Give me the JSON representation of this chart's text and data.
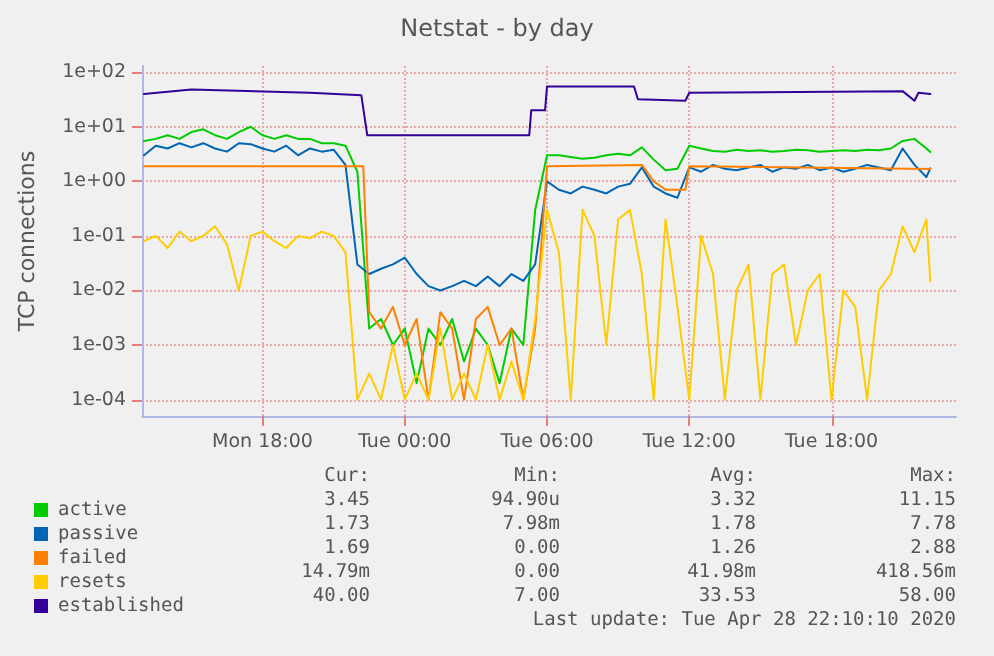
{
  "chart_data": {
    "type": "line",
    "title": "Netstat - by day",
    "ylabel": "TCP connections",
    "x": [
      "2020-04-27T13:00",
      "2020-04-27T13:30",
      "2020-04-27T14:00",
      "2020-04-27T14:30",
      "2020-04-27T15:00",
      "2020-04-27T15:30",
      "2020-04-27T16:00",
      "2020-04-27T16:30",
      "2020-04-27T17:00",
      "2020-04-27T17:30",
      "2020-04-27T18:00",
      "2020-04-27T18:30",
      "2020-04-27T19:00",
      "2020-04-27T19:30",
      "2020-04-27T20:00",
      "2020-04-27T20:30",
      "2020-04-27T21:00",
      "2020-04-27T21:30",
      "2020-04-27T22:00",
      "2020-04-27T22:30",
      "2020-04-27T23:00",
      "2020-04-27T23:30",
      "2020-04-28T00:00",
      "2020-04-28T00:30",
      "2020-04-28T01:00",
      "2020-04-28T01:30",
      "2020-04-28T02:00",
      "2020-04-28T02:30",
      "2020-04-28T03:00",
      "2020-04-28T03:30",
      "2020-04-28T04:00",
      "2020-04-28T04:30",
      "2020-04-28T05:00",
      "2020-04-28T05:30",
      "2020-04-28T06:00",
      "2020-04-28T06:30",
      "2020-04-28T07:00",
      "2020-04-28T07:30",
      "2020-04-28T08:00",
      "2020-04-28T08:30",
      "2020-04-28T09:00",
      "2020-04-28T09:30",
      "2020-04-28T10:00",
      "2020-04-28T10:30",
      "2020-04-28T11:00",
      "2020-04-28T11:30",
      "2020-04-28T12:00",
      "2020-04-28T12:30",
      "2020-04-28T13:00",
      "2020-04-28T13:30",
      "2020-04-28T14:00",
      "2020-04-28T14:30",
      "2020-04-28T15:00",
      "2020-04-28T15:30",
      "2020-04-28T16:00",
      "2020-04-28T16:30",
      "2020-04-28T17:00",
      "2020-04-28T17:30",
      "2020-04-28T18:00",
      "2020-04-28T18:30",
      "2020-04-28T19:00",
      "2020-04-28T19:30",
      "2020-04-28T20:00",
      "2020-04-28T20:30",
      "2020-04-28T21:00",
      "2020-04-28T21:30",
      "2020-04-28T22:00",
      "2020-04-28T22:10"
    ],
    "series": [
      {
        "name": "active",
        "color": "#00cc00",
        "values": [
          5.5,
          6,
          7,
          6,
          8,
          9,
          7,
          6,
          8,
          10,
          7,
          6,
          7,
          6,
          6,
          5,
          5,
          4.5,
          1.5,
          0.002,
          0.003,
          0.001,
          0.002,
          0.0002,
          0.002,
          0.001,
          0.003,
          0.0005,
          0.002,
          0.001,
          0.0002,
          0.002,
          0.001,
          0.3,
          3,
          3,
          2.8,
          2.6,
          2.7,
          3,
          3.2,
          3,
          4.2,
          2.5,
          1.6,
          1.7,
          4.5,
          4,
          3.6,
          3.5,
          3.8,
          3.6,
          3.7,
          3.5,
          3.6,
          3.8,
          3.7,
          3.5,
          3.6,
          3.7,
          3.6,
          3.8,
          3.7,
          4,
          5.5,
          6,
          4,
          3.45
        ]
      },
      {
        "name": "passive",
        "color": "#0066b3",
        "values": [
          3,
          4.5,
          4,
          5,
          4.2,
          5,
          4,
          3.5,
          5,
          4.8,
          4,
          3.5,
          4.5,
          3,
          4,
          3.5,
          3.8,
          2,
          0.03,
          0.02,
          0.025,
          0.03,
          0.04,
          0.02,
          0.012,
          0.01,
          0.012,
          0.015,
          0.012,
          0.018,
          0.012,
          0.02,
          0.015,
          0.03,
          1,
          0.7,
          0.6,
          0.8,
          0.7,
          0.6,
          0.8,
          0.9,
          1.8,
          0.8,
          0.6,
          0.5,
          1.8,
          1.5,
          2,
          1.7,
          1.6,
          1.8,
          2,
          1.5,
          1.8,
          1.7,
          2,
          1.6,
          1.8,
          1.5,
          1.7,
          2,
          1.8,
          1.6,
          4,
          2,
          1.2,
          1.73
        ]
      },
      {
        "name": "failed",
        "color": "#ff8000",
        "x": [
          "2020-04-27T13:00",
          "2020-04-27T22:15",
          "2020-04-27T22:30",
          "2020-04-27T23:00",
          "2020-04-27T23:30",
          "2020-04-28T00:00",
          "2020-04-28T00:30",
          "2020-04-28T01:00",
          "2020-04-28T01:30",
          "2020-04-28T02:00",
          "2020-04-28T02:30",
          "2020-04-28T03:00",
          "2020-04-28T03:30",
          "2020-04-28T04:00",
          "2020-04-28T04:30",
          "2020-04-28T05:00",
          "2020-04-28T05:30",
          "2020-04-28T06:00",
          "2020-04-28T10:00",
          "2020-04-28T10:30",
          "2020-04-28T11:00",
          "2020-04-28T11:50",
          "2020-04-28T12:00",
          "2020-04-28T22:10"
        ],
        "values": [
          1.9,
          1.9,
          0.004,
          0.002,
          0.005,
          0.001,
          0.003,
          0.0001,
          0.004,
          0.002,
          0.0001,
          0.003,
          0.005,
          0.001,
          0.002,
          0.0001,
          0.002,
          1.9,
          2,
          1,
          0.7,
          0.7,
          1.9,
          1.69
        ]
      },
      {
        "name": "resets",
        "color": "#ffcc00",
        "values": [
          0.08,
          0.1,
          0.06,
          0.12,
          0.08,
          0.1,
          0.15,
          0.07,
          0.01,
          0.1,
          0.12,
          0.08,
          0.06,
          0.1,
          0.09,
          0.12,
          0.1,
          0.05,
          0.0001,
          0.0003,
          0.0001,
          0.001,
          0.0001,
          0.0003,
          0.0001,
          0.002,
          0.0001,
          0.0003,
          0.0001,
          0.001,
          0.0001,
          0.0005,
          0.0001,
          0.003,
          0.3,
          0.05,
          0.0001,
          0.3,
          0.1,
          0.001,
          0.2,
          0.3,
          0.02,
          0.0001,
          0.2,
          0.005,
          0.0001,
          0.1,
          0.02,
          0.0001,
          0.01,
          0.03,
          0.0001,
          0.02,
          0.03,
          0.001,
          0.01,
          0.02,
          0.0001,
          0.01,
          0.005,
          0.0001,
          0.01,
          0.02,
          0.15,
          0.05,
          0.2,
          0.01479
        ]
      },
      {
        "name": "established",
        "color": "#330099",
        "x": [
          "2020-04-27T13:00",
          "2020-04-27T15:00",
          "2020-04-27T20:00",
          "2020-04-27T22:10",
          "2020-04-27T22:25",
          "2020-04-28T05:15",
          "2020-04-28T05:20",
          "2020-04-28T05:55",
          "2020-04-28T06:00",
          "2020-04-28T09:40",
          "2020-04-28T09:50",
          "2020-04-28T11:50",
          "2020-04-28T12:00",
          "2020-04-28T21:00",
          "2020-04-28T21:30",
          "2020-04-28T21:40",
          "2020-04-28T22:10"
        ],
        "values": [
          40,
          48,
          42,
          38,
          7,
          7,
          20,
          20,
          55,
          55,
          32,
          30,
          42,
          45,
          30,
          42,
          40
        ]
      }
    ],
    "xlim": [
      "2020-04-27T12:55",
      "2020-04-28T23:15"
    ],
    "xticks": [
      {
        "value": "2020-04-27T18:00",
        "label": "Mon 18:00"
      },
      {
        "value": "2020-04-28T00:00",
        "label": "Tue 00:00"
      },
      {
        "value": "2020-04-28T06:00",
        "label": "Tue 06:00"
      },
      {
        "value": "2020-04-28T12:00",
        "label": "Tue 12:00"
      },
      {
        "value": "2020-04-28T18:00",
        "label": "Tue 18:00"
      }
    ],
    "ylim": [
      5e-05,
      130
    ],
    "yticks": [
      {
        "value": 0.0001,
        "label": "1e-04"
      },
      {
        "value": 0.001,
        "label": "1e-03"
      },
      {
        "value": 0.01,
        "label": "1e-02"
      },
      {
        "value": 0.1,
        "label": "1e-01"
      },
      {
        "value": 1,
        "label": "1e+00"
      },
      {
        "value": 10,
        "label": "1e+01"
      },
      {
        "value": 100,
        "label": "1e+02"
      }
    ],
    "log": "y",
    "grid": true,
    "legend": "bottom left",
    "marker": "none",
    "line_style": "solid",
    "annotations": [
      "Cur:",
      "Min:",
      "Avg:",
      "Max:",
      "3.45",
      "94.90u",
      "3.32",
      "11.15",
      "1.73",
      "7.98m",
      "1.78",
      "7.78",
      "1.69",
      "0.00",
      "1.26",
      "2.88",
      "14.79m",
      "0.00",
      "41.98m",
      "418.56m",
      "40.00",
      "7.00",
      "33.53",
      "58.00",
      "Last update: Tue Apr 28 22:10:10 2020"
    ]
  }
}
